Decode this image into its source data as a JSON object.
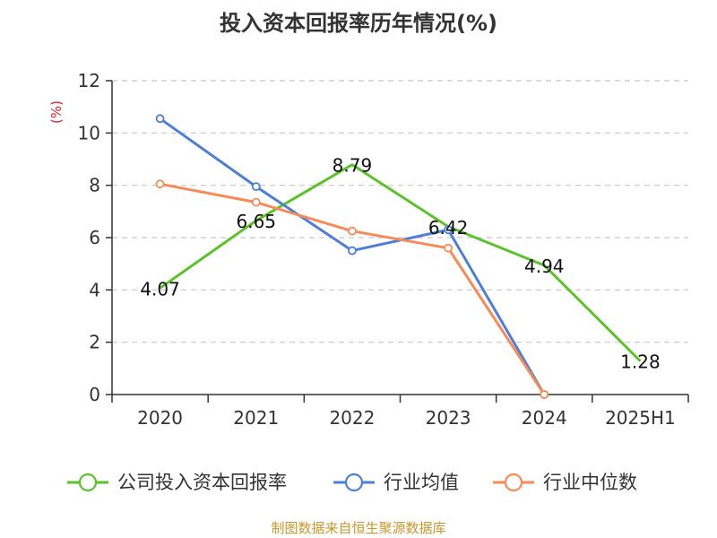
{
  "colors": {
    "series": [
      "#5bc22a",
      "#4d7fd8",
      "#f68b56"
    ],
    "grid": "#c8c8c8",
    "axis": "#333333",
    "unit": "#e02020",
    "footer": "#c8962d"
  },
  "footer": {
    "source": "制图数据来自恒生聚源数据库"
  },
  "chart_data": {
    "type": "line",
    "title": "投入资本回报率历年情况(%)",
    "ylabel": "(%)",
    "ylim": [
      0,
      12
    ],
    "yticks": [
      0,
      2,
      4,
      6,
      8,
      10,
      12
    ],
    "grid": true,
    "legend_position": "bottom",
    "categories": [
      "2020",
      "2021",
      "2022",
      "2023",
      "2024",
      "2025H1"
    ],
    "series": [
      {
        "name": "公司投入资本回报率",
        "values": [
          4.07,
          6.65,
          8.79,
          6.42,
          4.94,
          1.28
        ],
        "labels": [
          "4.07",
          "6.65",
          "8.79",
          "6.42",
          "4.94",
          "1.28"
        ]
      },
      {
        "name": "行业均值",
        "values": [
          10.55,
          7.95,
          5.5,
          6.3,
          0.0,
          null
        ]
      },
      {
        "name": "行业中位数",
        "values": [
          8.05,
          7.35,
          6.25,
          5.6,
          0.0,
          null
        ]
      }
    ]
  }
}
